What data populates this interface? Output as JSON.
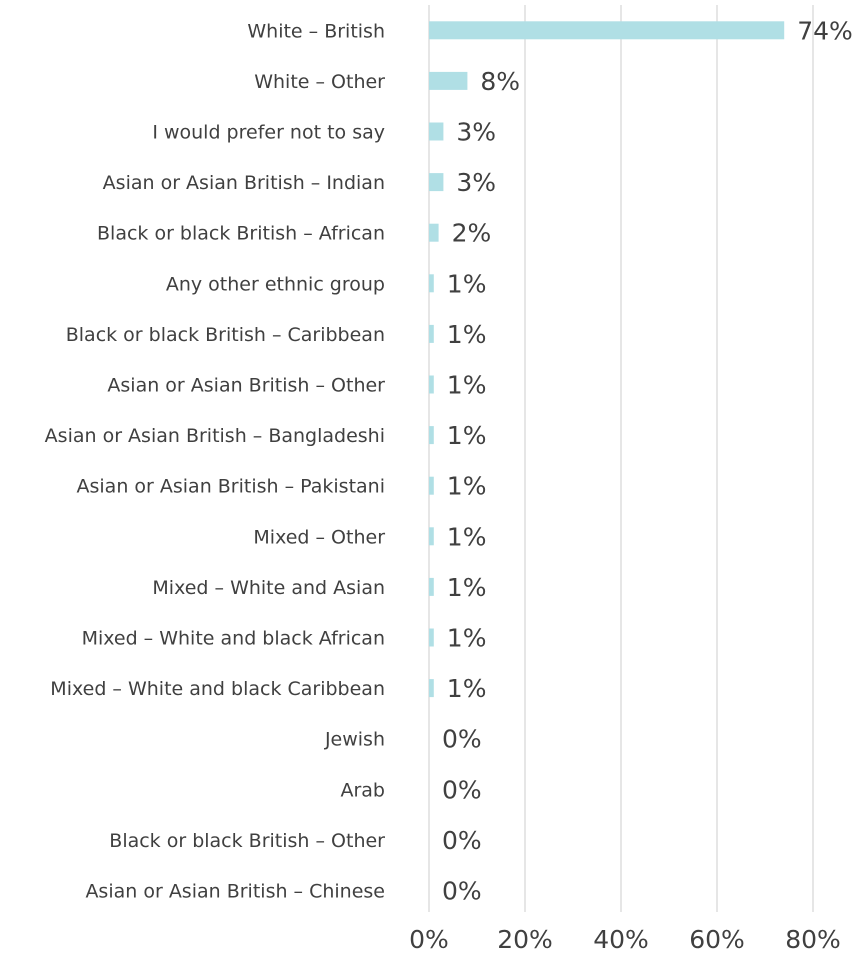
{
  "chart_data": {
    "type": "bar",
    "orientation": "horizontal",
    "categories": [
      "White – British",
      "White – Other",
      "I would prefer not to say",
      "Asian or Asian British – Indian",
      "Black or black British – African",
      "Any other ethnic group",
      "Black or black British – Caribbean",
      "Asian or Asian British – Other ",
      "Asian or Asian British – Bangladeshi",
      "Asian or Asian British – Pakistani",
      "Mixed – Other",
      "Mixed – White and Asian",
      "Mixed – White and black African",
      "Mixed – White and black Caribbean",
      "Jewish",
      "Arab",
      "Black or black British – Other",
      "Asian or Asian British – Chinese"
    ],
    "values": [
      74,
      8,
      3,
      3,
      2,
      1,
      1,
      1,
      1,
      1,
      1,
      1,
      1,
      1,
      0,
      0,
      0,
      0
    ],
    "value_labels": [
      "74%",
      "8%",
      "3%",
      "3%",
      "2%",
      "1%",
      "1%",
      "1%",
      "1%",
      "1%",
      "1%",
      "1%",
      "1%",
      "1%",
      "0%",
      "0%",
      "0%",
      "0%"
    ],
    "xlim": [
      0,
      80
    ],
    "xticks": [
      0,
      20,
      40,
      60,
      80
    ],
    "xtick_labels": [
      "0%",
      "20%",
      "40%",
      "60%",
      "80%"
    ],
    "title": "",
    "xlabel": "",
    "ylabel": "",
    "grid": "vertical",
    "colors": {
      "bar": "#b0dfe5",
      "grid": "#d9d9d9",
      "text": "#404040"
    }
  }
}
